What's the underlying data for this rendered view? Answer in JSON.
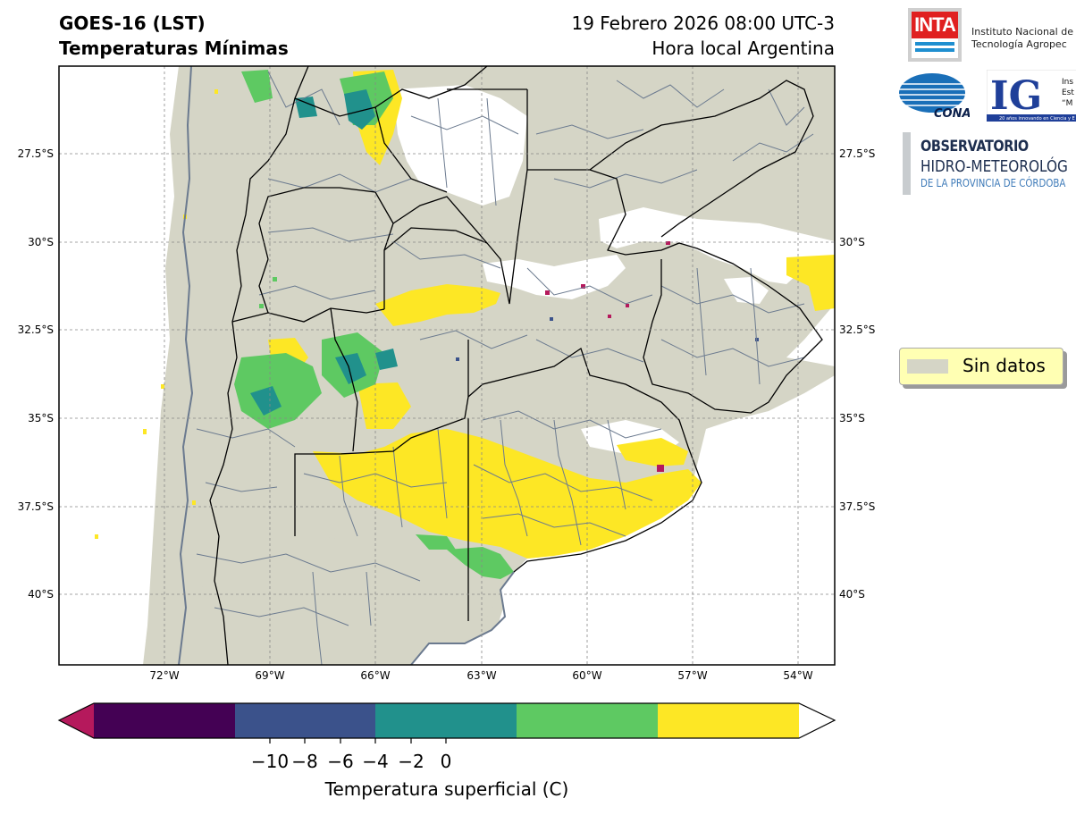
{
  "header": {
    "title_line1": "GOES-16 (LST)",
    "title_line2": "Temperaturas Mínimas",
    "date_line1": "19 Febrero 2026 08:00 UTC-3",
    "date_line2": "Hora local Argentina"
  },
  "map": {
    "lat_labels": [
      "27.5°S",
      "30°S",
      "32.5°S",
      "35°S",
      "37.5°S",
      "40°S"
    ],
    "lon_labels": [
      "72°W",
      "69°W",
      "66°W",
      "63°W",
      "60°W",
      "57°W",
      "54°W"
    ],
    "land_color": "#d5d5c6",
    "border_color": "#000000",
    "district_color": "#6b7a8f",
    "coast_color": "#6b7a8f"
  },
  "colorbar": {
    "tick_labels": [
      "−10",
      "−8",
      "−6",
      "−4",
      "−2",
      "0"
    ],
    "title": "Temperatura superficial (C)",
    "colors": [
      "#b5195c",
      "#440154",
      "#3b528b",
      "#21918c",
      "#5ec962",
      "#fde725",
      "#ffffff"
    ]
  },
  "legend": {
    "label": "Sin datos"
  },
  "logos": {
    "inta_mark": "INTA",
    "inta_line1": "Instituto Nacional de",
    "inta_line2": "Tecnología Agropec",
    "conae_mark": "CONAE",
    "ig_mark": "IG",
    "ig_side1": "Ins",
    "ig_side2": "Est",
    "ig_side3": "“M",
    "ig_footer": "20 años innovando en Ciencia y E",
    "obs_line1": "OBSERVATORIO",
    "obs_line2": "HIDRO-METEOROLÓG",
    "obs_line3": "DE LA PROVINCIA DE CÓRDOBA"
  }
}
